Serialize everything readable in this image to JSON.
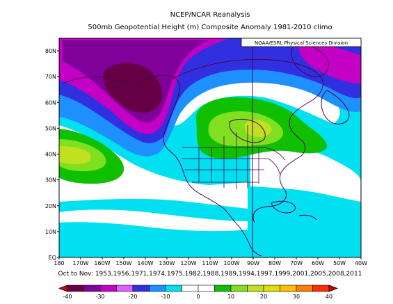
{
  "title": "NCEP/NCAR Reanalysis",
  "subtitle": "500mb Geopotential Height (m) Composite Anomaly 1981-2010 climo",
  "credit": "NOAA/ESRL Physical Sciences Division",
  "caption": "Oct to Nov: 1953,1956,1971,1974,1975,1982,1988,1989,1994,1997,1999,2001,2005,2008,2011",
  "lat_ticks": [
    "EQ",
    "10N",
    "20N",
    "30N",
    "40N",
    "50N",
    "60N",
    "70N",
    "80N"
  ],
  "lon_ticks": [
    "180",
    "170W",
    "160W",
    "150W",
    "140W",
    "130W",
    "120W",
    "110W",
    "100W",
    "90W",
    "80W",
    "70W",
    "60W",
    "50W",
    "40W"
  ],
  "colorbar": {
    "tick_labels": [
      "-40",
      "-30",
      "-20",
      "-10",
      "0",
      "10",
      "20",
      "30",
      "40"
    ],
    "colors": [
      "#d60000",
      "#660044",
      "#80009a",
      "#c400c4",
      "#e060ff",
      "#3030e0",
      "#1e90ff",
      "#00e0f0",
      "#ffffff",
      "#ffffff",
      "#10c000",
      "#80e020",
      "#c0e020",
      "#e0e000",
      "#ffc000",
      "#ff8000",
      "#ff3000",
      "#d00000"
    ]
  },
  "colors": {
    "background": "#00e0f0",
    "positive_light": "#10c000",
    "positive_mid": "#80e020",
    "positive_high": "#c0e020",
    "negative_1": "#1e90ff",
    "negative_2": "#3030e0",
    "negative_3": "#c400c4",
    "negative_4": "#80009a",
    "negative_5": "#660044",
    "coast": "#4a0050"
  }
}
